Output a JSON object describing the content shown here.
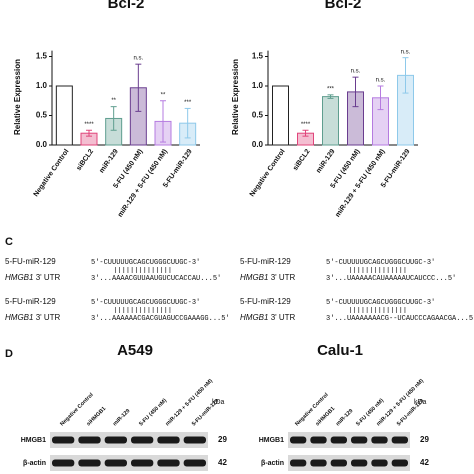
{
  "chart_data": [
    {
      "type": "bar",
      "title": "Bcl-2",
      "y_label": "Relative Expression",
      "categories": [
        "Negative Control",
        "siBCL2",
        "miR-129",
        "5-FU (450 nM)",
        "miR-129 + 5-FU (450 nM)",
        "5-FU-miR-129"
      ],
      "values": [
        1.0,
        0.2,
        0.45,
        0.97,
        0.4,
        0.37
      ],
      "errors": [
        0,
        0.05,
        0.2,
        0.4,
        0.35,
        0.25
      ],
      "annotations": [
        null,
        "****",
        "**",
        "n.s.",
        "**",
        "***"
      ],
      "colors": [
        "#222222",
        "#e0457b",
        "#5f9e8f",
        "#6a3d8f",
        "#b57be0",
        "#8ec9ea"
      ],
      "ylim": [
        0,
        1.6
      ],
      "yticks": [
        {
          "value": 0,
          "label": "0.0"
        },
        0.5,
        {
          "value": 1,
          "label": "1.0"
        },
        1.5
      ]
    },
    {
      "type": "bar",
      "title": "Bcl-2",
      "y_label": "Relative Expression",
      "categories": [
        "Negative Control",
        "siBCL2",
        "miR-129",
        "5-FU (450 nM)",
        "miR-129 + 5-FU (450 nM)",
        "5-FU-miR-129"
      ],
      "values": [
        1.0,
        0.2,
        0.82,
        0.9,
        0.8,
        1.18
      ],
      "errors": [
        0,
        0.05,
        0.03,
        0.25,
        0.2,
        0.3
      ],
      "annotations": [
        null,
        "****",
        "***",
        "n.s.",
        "n.s.",
        "n.s."
      ],
      "colors": [
        "#222222",
        "#e0457b",
        "#5f9e8f",
        "#6a3d8f",
        "#b57be0",
        "#8ec9ea"
      ],
      "ylim": [
        0,
        1.6
      ],
      "yticks": [
        {
          "value": 0,
          "label": "0.0"
        },
        0.5,
        {
          "value": 1,
          "label": "1.0"
        },
        1.5
      ]
    }
  ],
  "panel_c": {
    "label": "C",
    "pairs": [
      {
        "mirna": "5-FU-miR-129",
        "mirna_seq": "5'-CUUUUUGCAGCUGGGCUUGC-3'",
        "gene": "HMGB1",
        "region": "3' UTR",
        "target_seq": "3'...AAAACGUUAAUGUCUCACCAU...5'"
      },
      {
        "mirna": "5-FU-miR-129",
        "mirna_seq": "5'-CUUUUUGCAGCUGGGCUUGC-3'",
        "gene": "HMGB1",
        "region": "3' UTR",
        "target_seq": "3'...UAAAAACAUAAAAAUCAUCCC...5'"
      },
      {
        "mirna": "5-FU-miR-129",
        "mirna_seq": "5'-CUUUUUGCAGCUGGGCUUGC-3'",
        "gene": "HMGB1",
        "region": "3' UTR",
        "target_seq": "3'...AAAAAACGACGUAGUCCGAAAGG...5'"
      },
      {
        "mirna": "5-FU-miR-129",
        "mirna_seq": "5'-CUUUUUGCAGCUGGGCUUGC-3'",
        "gene": "HMGB1",
        "region": "3' UTR",
        "target_seq": "3'...UAAAAAAACG--UCAUCCCAGAACGA...5'"
      }
    ]
  },
  "panel_d": {
    "label": "D",
    "blots": [
      {
        "title": "A549",
        "lanes": [
          "Negative Control",
          "siHMGB1",
          "miR-129",
          "5-FU (450 nM)",
          "miR-129 + 5-FU (450 nM)",
          "5-FU-miR-129"
        ],
        "rows": [
          {
            "name": "HMGB1",
            "kda": "29"
          },
          {
            "name": "β-actin",
            "kda": "42"
          }
        ],
        "unit": "kDa"
      },
      {
        "title": "Calu-1",
        "lanes": [
          "Negative Control",
          "siHMGB1",
          "miR-129",
          "5-FU (450 nM)",
          "miR-129 + 5-FU (450 nM)",
          "5-FU-miR-129"
        ],
        "rows": [
          {
            "name": "HMGB1",
            "kda": "29"
          },
          {
            "name": "β-actin",
            "kda": "42"
          }
        ],
        "unit": "kDa"
      }
    ]
  }
}
